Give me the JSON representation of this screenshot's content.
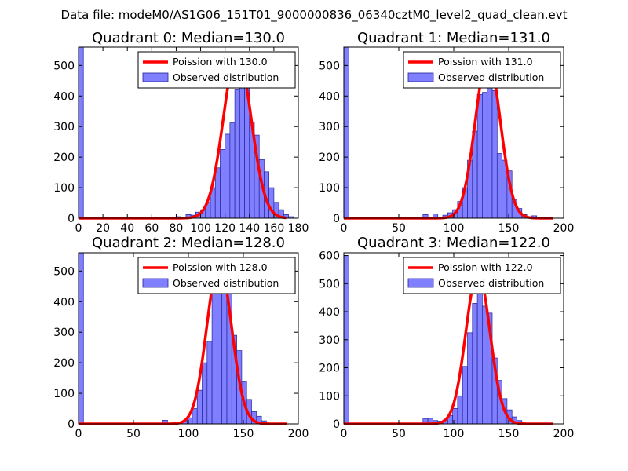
{
  "suptitle": "Data file: modeM0/AS1G06_151T01_9000000836_06340cztM0_level2_quad_clean.evt",
  "colors": {
    "bar_fill": "#7f7fff",
    "bar_edge": "#24249a",
    "curve": "#ff0000",
    "axes": "#000000"
  },
  "chart_data": [
    {
      "type": "bar",
      "title": "Quadrant 0: Median=130.0",
      "legend": {
        "curve_label": "Poission with 130.0",
        "bar_label": "Observed distribution",
        "placement": "upper-right"
      },
      "xlim": [
        0,
        180
      ],
      "ylim": [
        0,
        560
      ],
      "xticks": [
        0,
        20,
        40,
        60,
        80,
        100,
        120,
        140,
        160,
        180
      ],
      "yticks": [
        0,
        100,
        200,
        300,
        400,
        500
      ],
      "bin_width": 4,
      "bins": [
        {
          "x": 0,
          "y": 560
        },
        {
          "x": 80,
          "y": 5
        },
        {
          "x": 88,
          "y": 12
        },
        {
          "x": 92,
          "y": 10
        },
        {
          "x": 96,
          "y": 20
        },
        {
          "x": 100,
          "y": 28
        },
        {
          "x": 104,
          "y": 52
        },
        {
          "x": 108,
          "y": 100
        },
        {
          "x": 112,
          "y": 165
        },
        {
          "x": 116,
          "y": 225
        },
        {
          "x": 120,
          "y": 275
        },
        {
          "x": 124,
          "y": 312
        },
        {
          "x": 128,
          "y": 420
        },
        {
          "x": 132,
          "y": 452
        },
        {
          "x": 136,
          "y": 428
        },
        {
          "x": 140,
          "y": 312
        },
        {
          "x": 144,
          "y": 272
        },
        {
          "x": 148,
          "y": 192
        },
        {
          "x": 152,
          "y": 152
        },
        {
          "x": 156,
          "y": 100
        },
        {
          "x": 160,
          "y": 52
        },
        {
          "x": 164,
          "y": 28
        },
        {
          "x": 168,
          "y": 12
        },
        {
          "x": 172,
          "y": 5
        }
      ],
      "curve": {
        "mean": 130,
        "peak": 540,
        "sigma": 11.4,
        "x_start": 0,
        "x_end": 170
      }
    },
    {
      "type": "bar",
      "title": "Quadrant 1: Median=131.0",
      "legend": {
        "curve_label": "Poission with 131.0",
        "bar_label": "Observed distribution",
        "placement": "upper-right"
      },
      "xlim": [
        0,
        200
      ],
      "ylim": [
        0,
        560
      ],
      "xticks": [
        0,
        50,
        100,
        150,
        200
      ],
      "yticks": [
        0,
        100,
        200,
        300,
        400,
        500
      ],
      "bin_width": 4.5,
      "bins": [
        {
          "x": 0,
          "y": 560
        },
        {
          "x": 72,
          "y": 12
        },
        {
          "x": 81,
          "y": 14
        },
        {
          "x": 90,
          "y": 10
        },
        {
          "x": 94.5,
          "y": 18
        },
        {
          "x": 99,
          "y": 28
        },
        {
          "x": 103.5,
          "y": 55
        },
        {
          "x": 108,
          "y": 100
        },
        {
          "x": 112.5,
          "y": 190
        },
        {
          "x": 117,
          "y": 285
        },
        {
          "x": 121.5,
          "y": 405
        },
        {
          "x": 126,
          "y": 412
        },
        {
          "x": 130.5,
          "y": 472
        },
        {
          "x": 135,
          "y": 418
        },
        {
          "x": 139.5,
          "y": 212
        },
        {
          "x": 144,
          "y": 190
        },
        {
          "x": 148.5,
          "y": 155
        },
        {
          "x": 153,
          "y": 60
        },
        {
          "x": 157.5,
          "y": 32
        },
        {
          "x": 162,
          "y": 12
        },
        {
          "x": 171,
          "y": 8
        }
      ],
      "curve": {
        "mean": 131,
        "peak": 525,
        "sigma": 11.4,
        "x_start": 0,
        "x_end": 190
      }
    },
    {
      "type": "bar",
      "title": "Quadrant 2: Median=128.0",
      "legend": {
        "curve_label": "Poission with 128.0",
        "bar_label": "Observed distribution",
        "placement": "upper-right"
      },
      "xlim": [
        0,
        200
      ],
      "ylim": [
        0,
        560
      ],
      "xticks": [
        0,
        50,
        100,
        150,
        200
      ],
      "yticks": [
        0,
        100,
        200,
        300,
        400,
        500
      ],
      "bin_width": 4.5,
      "bins": [
        {
          "x": 0,
          "y": 560
        },
        {
          "x": 76.5,
          "y": 12
        },
        {
          "x": 94.5,
          "y": 10
        },
        {
          "x": 99,
          "y": 20
        },
        {
          "x": 103.5,
          "y": 50
        },
        {
          "x": 108,
          "y": 110
        },
        {
          "x": 112.5,
          "y": 200
        },
        {
          "x": 117,
          "y": 270
        },
        {
          "x": 121.5,
          "y": 440
        },
        {
          "x": 126,
          "y": 470
        },
        {
          "x": 130.5,
          "y": 470
        },
        {
          "x": 135,
          "y": 460
        },
        {
          "x": 139.5,
          "y": 290
        },
        {
          "x": 144,
          "y": 240
        },
        {
          "x": 148.5,
          "y": 140
        },
        {
          "x": 153,
          "y": 80
        },
        {
          "x": 157.5,
          "y": 40
        },
        {
          "x": 162,
          "y": 25
        },
        {
          "x": 166.5,
          "y": 10
        }
      ],
      "curve": {
        "mean": 128,
        "peak": 525,
        "sigma": 11.3,
        "x_start": 0,
        "x_end": 190
      }
    },
    {
      "type": "bar",
      "title": "Quadrant 3: Median=122.0",
      "legend": {
        "curve_label": "Poission with 122.0",
        "bar_label": "Observed distribution",
        "placement": "upper-right"
      },
      "xlim": [
        0,
        200
      ],
      "ylim": [
        0,
        610
      ],
      "xticks": [
        0,
        50,
        100,
        150,
        200
      ],
      "yticks": [
        0,
        100,
        200,
        300,
        400,
        500,
        600
      ],
      "bin_width": 4.5,
      "bins": [
        {
          "x": 0,
          "y": 600
        },
        {
          "x": 72,
          "y": 18
        },
        {
          "x": 76.5,
          "y": 20
        },
        {
          "x": 81,
          "y": 12
        },
        {
          "x": 85.5,
          "y": 10
        },
        {
          "x": 90,
          "y": 14
        },
        {
          "x": 94.5,
          "y": 30
        },
        {
          "x": 99,
          "y": 55
        },
        {
          "x": 103.5,
          "y": 100
        },
        {
          "x": 108,
          "y": 205
        },
        {
          "x": 112.5,
          "y": 325
        },
        {
          "x": 117,
          "y": 430
        },
        {
          "x": 121.5,
          "y": 540
        },
        {
          "x": 126,
          "y": 420
        },
        {
          "x": 130.5,
          "y": 395
        },
        {
          "x": 135,
          "y": 235
        },
        {
          "x": 139.5,
          "y": 155
        },
        {
          "x": 144,
          "y": 90
        },
        {
          "x": 148.5,
          "y": 50
        },
        {
          "x": 153,
          "y": 25
        },
        {
          "x": 157.5,
          "y": 12
        }
      ],
      "curve": {
        "mean": 122,
        "peak": 540,
        "sigma": 11.0,
        "x_start": 0,
        "x_end": 190
      }
    }
  ]
}
